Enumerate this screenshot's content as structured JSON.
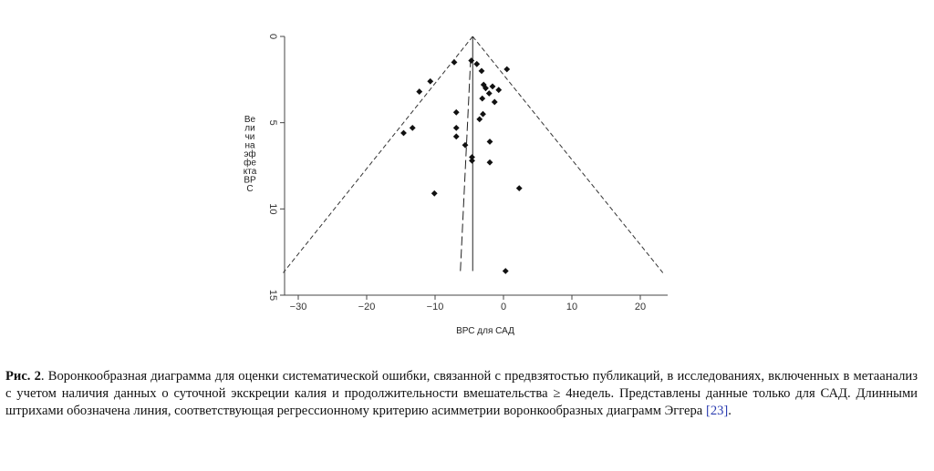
{
  "chart_data": {
    "type": "scatter",
    "xlabel": "ВРС для САД",
    "ylabel_lines": [
      "Ве",
      "ли",
      "чи",
      "на",
      "эф",
      "фе",
      "кта",
      "ВР",
      "С"
    ],
    "xlim": [
      -32,
      24
    ],
    "ylim": [
      0,
      15
    ],
    "y_reversed": true,
    "x_ticks": [
      -30,
      -20,
      -10,
      0,
      10,
      20
    ],
    "y_ticks": [
      0,
      5,
      10,
      15
    ],
    "x_tick_labels": [
      "−30",
      "−20",
      "−10",
      "0",
      "10",
      "20"
    ],
    "y_tick_labels": [
      "0",
      "5",
      "10",
      "15"
    ],
    "pooled_estimate": -4.5,
    "funnel_apex": [
      -4.5,
      0
    ],
    "funnel_left_bottom": [
      -32.2,
      13.7
    ],
    "funnel_right_bottom": [
      23.3,
      13.7
    ],
    "egger_line": [
      [
        -6.3,
        13.6
      ],
      [
        -4.8,
        1.3
      ]
    ],
    "points": [
      {
        "x": -4.7,
        "y": 1.4
      },
      {
        "x": -3.9,
        "y": 1.6
      },
      {
        "x": 0.5,
        "y": 1.9
      },
      {
        "x": -3.2,
        "y": 2.0
      },
      {
        "x": -2.9,
        "y": 2.8
      },
      {
        "x": -1.6,
        "y": 2.9
      },
      {
        "x": -2.6,
        "y": 3.0
      },
      {
        "x": -0.7,
        "y": 3.1
      },
      {
        "x": -2.1,
        "y": 3.3
      },
      {
        "x": -3.1,
        "y": 3.6
      },
      {
        "x": -1.3,
        "y": 3.8
      },
      {
        "x": -7.2,
        "y": 1.5
      },
      {
        "x": -10.7,
        "y": 2.6
      },
      {
        "x": -12.3,
        "y": 3.2
      },
      {
        "x": -3.0,
        "y": 4.5
      },
      {
        "x": -3.5,
        "y": 4.8
      },
      {
        "x": -6.9,
        "y": 4.4
      },
      {
        "x": -6.9,
        "y": 5.3
      },
      {
        "x": -6.9,
        "y": 5.8
      },
      {
        "x": -13.3,
        "y": 5.3
      },
      {
        "x": -14.6,
        "y": 5.6
      },
      {
        "x": -2.0,
        "y": 6.1
      },
      {
        "x": -5.6,
        "y": 6.3
      },
      {
        "x": -4.6,
        "y": 7.0
      },
      {
        "x": -4.6,
        "y": 7.2
      },
      {
        "x": -2.0,
        "y": 7.3
      },
      {
        "x": 2.3,
        "y": 8.8
      },
      {
        "x": -10.1,
        "y": 9.1
      },
      {
        "x": 0.3,
        "y": 13.6
      }
    ]
  },
  "caption": {
    "label": "Рис. 2",
    "text": ". Воронкообразная диаграмма для оценки систематической ошибки, связанной с предвзятостью публикаций, в исследованиях, включенных в метаанализ с учетом   наличия данных о суточной экскреции калия и продолжительности вмешательства ≥ 4недель. Представлены данные только для САД. Длинными штрихами обозначена линия, соответствующая регрессионному критерию асимметрии воронкообразных диаграмм Эггера ",
    "ref": "[23]",
    "end": "."
  }
}
